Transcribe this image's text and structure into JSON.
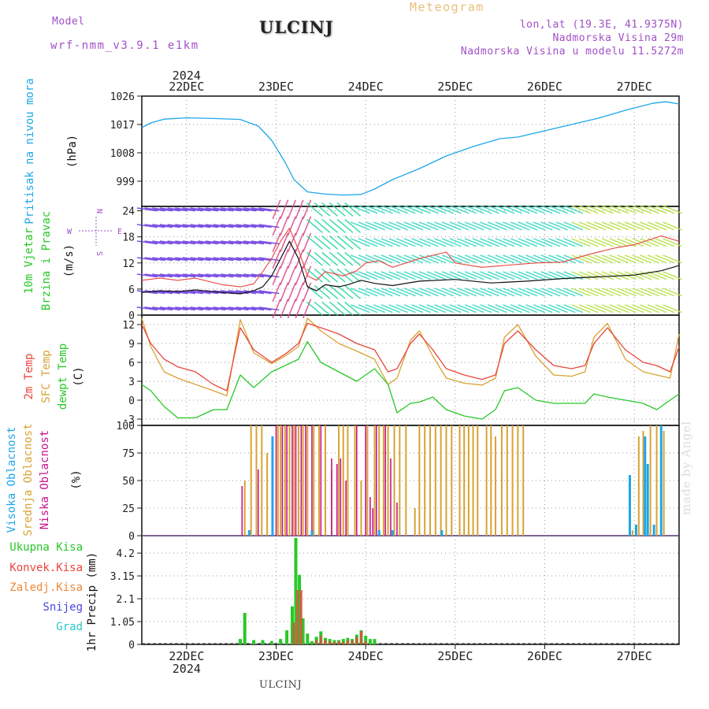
{
  "header": {
    "model_label": "Model",
    "model_name": "wrf-nmm_v3.9.1 e1km",
    "title": "ULCINJ",
    "product": "Meteogram",
    "coords": "lon,lat (19.3E, 41.9375N)",
    "elevation": "Nadmorska Visina 29m",
    "model_elevation": "Nadmorska Visina u modelu 11.5272m"
  },
  "footer": {
    "station": "ULCINJ",
    "watermark": "made by Angel"
  },
  "colors": {
    "pressure": "#1ea7e8",
    "t2m": "#e8463c",
    "sfc": "#d9a233",
    "dewpt": "#28c828",
    "high_cloud": "#1ea7e8",
    "mid_cloud": "#d9a233",
    "low_cloud": "#c8148c",
    "total_precip": "#28c828",
    "conv_precip": "#e8463c",
    "frozen_precip": "#ef8a3a",
    "snow": "#4848e0",
    "graupel": "#28c8c8",
    "model_label": "#a050c8",
    "product": "#e8c078"
  },
  "chart_data": [
    {
      "type": "line",
      "panel": "pressure",
      "title": "",
      "ylabel_lines": [
        "Pritisak na nivou mora",
        "(hPa)"
      ],
      "ylim": [
        991,
        1026
      ],
      "yticks": [
        "999",
        "1008",
        "1017",
        "1026"
      ],
      "ytick_values": [
        999,
        1008,
        1017,
        1026
      ],
      "xlim": [
        21.5,
        27.5
      ],
      "top_year": "2024",
      "top_ticks": [
        "22DEC",
        "23DEC",
        "24DEC",
        "25DEC",
        "26DEC",
        "27DEC"
      ],
      "series": [
        {
          "x": [
            21.5,
            21.6,
            21.75,
            22.0,
            22.3,
            22.6,
            22.8,
            22.95,
            23.1,
            23.2,
            23.35,
            23.55,
            23.75,
            23.95,
            24.1,
            24.3,
            24.6,
            24.9,
            25.2,
            25.5,
            25.7,
            26.0,
            26.3,
            26.6,
            26.9,
            27.2,
            27.35,
            27.5
          ],
          "y": [
            1016,
            1017.5,
            1018.7,
            1019.1,
            1018.9,
            1018.6,
            1016.5,
            1012,
            1005,
            999.5,
            995.6,
            994.9,
            994.6,
            994.8,
            996.5,
            999.5,
            1003,
            1007,
            1010,
            1012.5,
            1013,
            1015,
            1017,
            1019,
            1021.5,
            1023.7,
            1024.2,
            1023.5
          ]
        }
      ]
    },
    {
      "type": "line",
      "panel": "wind",
      "title": "",
      "ylabel_lines": [
        "10m Vjetar",
        "Brzina i Pravac",
        "(m/s)"
      ],
      "compass": [
        "W",
        "E",
        "N",
        "S"
      ],
      "ylim": [
        0,
        25
      ],
      "yticks": [
        "0",
        "6",
        "12",
        "18",
        "24"
      ],
      "ytick_values": [
        0,
        6,
        12,
        18,
        24
      ],
      "xlim": [
        21.5,
        27.5
      ],
      "series": [
        {
          "name": "speed",
          "x": [
            21.5,
            21.7,
            21.9,
            22.1,
            22.4,
            22.6,
            22.75,
            22.85,
            22.95,
            23.05,
            23.15,
            23.25,
            23.35,
            23.45,
            23.55,
            23.7,
            23.8,
            23.95,
            24.1,
            24.3,
            24.6,
            25.0,
            25.4,
            25.8,
            26.2,
            26.6,
            27.0,
            27.3,
            27.5
          ],
          "y": [
            5.2,
            5.6,
            5.4,
            5.8,
            5.2,
            4.9,
            5.6,
            6.5,
            9.0,
            13.0,
            17.0,
            13.0,
            6.5,
            5.6,
            7.0,
            6.5,
            7.0,
            8.0,
            7.3,
            6.8,
            7.8,
            8.2,
            7.4,
            7.8,
            8.4,
            8.8,
            9.2,
            10.2,
            11.4
          ]
        },
        {
          "name": "gust",
          "x": [
            21.5,
            21.7,
            21.9,
            22.1,
            22.4,
            22.6,
            22.75,
            22.85,
            22.95,
            23.05,
            23.15,
            23.25,
            23.35,
            23.45,
            23.55,
            23.75,
            23.9,
            24.0,
            24.15,
            24.3,
            24.6,
            24.9,
            25.0,
            25.3,
            25.6,
            25.9,
            26.2,
            26.5,
            26.8,
            27.0,
            27.3,
            27.5
          ],
          "y": [
            8.0,
            8.5,
            8.0,
            8.5,
            7.0,
            6.5,
            7.2,
            10.0,
            13.0,
            17.0,
            20.0,
            15.0,
            9.0,
            8.0,
            10.0,
            9.0,
            10.2,
            12.0,
            12.5,
            11.0,
            13.0,
            14.5,
            12.0,
            11.0,
            11.5,
            12.0,
            12.2,
            14.0,
            15.5,
            16.2,
            18.2,
            17.0
          ]
        }
      ]
    },
    {
      "type": "line",
      "panel": "temperature",
      "title": "",
      "ylabel_lines": [
        "2m Temp",
        "SFC Temp",
        "dewpt Temp",
        "(C)"
      ],
      "ylim": [
        -4,
        13.5
      ],
      "yticks": [
        "-3",
        "0",
        "3",
        "6",
        "9",
        "12"
      ],
      "ytick_values": [
        -3,
        0,
        3,
        6,
        9,
        12
      ],
      "xlim": [
        21.5,
        27.5
      ],
      "series": [
        {
          "name": "2m Temp",
          "x": [
            21.5,
            21.6,
            21.75,
            21.9,
            22.1,
            22.3,
            22.45,
            22.6,
            22.75,
            22.95,
            23.1,
            23.25,
            23.35,
            23.5,
            23.7,
            23.9,
            24.1,
            24.25,
            24.35,
            24.5,
            24.6,
            24.75,
            24.9,
            25.1,
            25.3,
            25.45,
            25.55,
            25.7,
            25.9,
            26.1,
            26.3,
            26.45,
            26.55,
            26.7,
            26.9,
            27.1,
            27.25,
            27.4,
            27.5
          ],
          "y": [
            12,
            9,
            6.5,
            5.3,
            4.5,
            2.5,
            1.5,
            11.5,
            8,
            6,
            7.3,
            9,
            12.2,
            11.5,
            10.5,
            9,
            8,
            4.5,
            5,
            9,
            10.5,
            8,
            5,
            4,
            3.3,
            4,
            9,
            11,
            8,
            5.5,
            5,
            5.5,
            9,
            11.5,
            8,
            6,
            5.5,
            4.5,
            8.5
          ]
        },
        {
          "name": "SFC Temp",
          "x": [
            21.5,
            21.6,
            21.75,
            21.9,
            22.1,
            22.3,
            22.45,
            22.6,
            22.75,
            22.95,
            23.1,
            23.25,
            23.35,
            23.5,
            23.7,
            23.9,
            24.1,
            24.25,
            24.35,
            24.5,
            24.6,
            24.75,
            24.9,
            25.1,
            25.3,
            25.45,
            25.55,
            25.7,
            25.9,
            26.1,
            26.3,
            26.45,
            26.55,
            26.7,
            26.9,
            27.1,
            27.25,
            27.4,
            27.5
          ],
          "y": [
            13,
            8.5,
            4.5,
            3.5,
            2.5,
            1.5,
            0.7,
            12.8,
            7.5,
            5.8,
            7,
            8.5,
            13,
            11,
            9,
            7.8,
            6.5,
            2.5,
            3.5,
            9.5,
            11,
            7,
            3.5,
            2.7,
            2.4,
            3.5,
            10,
            12,
            7,
            4,
            3.8,
            4.5,
            10,
            12.2,
            6.5,
            4.5,
            4,
            3.5,
            10.5
          ]
        },
        {
          "name": "dewpt Temp",
          "x": [
            21.5,
            21.6,
            21.75,
            21.9,
            22.1,
            22.3,
            22.45,
            22.6,
            22.75,
            22.95,
            23.1,
            23.25,
            23.35,
            23.5,
            23.7,
            23.9,
            24.1,
            24.25,
            24.35,
            24.5,
            24.6,
            24.75,
            24.9,
            25.1,
            25.3,
            25.45,
            25.55,
            25.7,
            25.9,
            26.1,
            26.3,
            26.45,
            26.55,
            26.7,
            26.9,
            27.1,
            27.25,
            27.4,
            27.5
          ],
          "y": [
            2.5,
            1.5,
            -1,
            -2.8,
            -2.8,
            -1.5,
            -1.5,
            4,
            2,
            4.5,
            5.5,
            6.5,
            9.3,
            6,
            4.5,
            3,
            5,
            2.5,
            -2,
            -0.5,
            -0.3,
            0.5,
            -1.5,
            -2.5,
            -3,
            -1.5,
            1.5,
            2,
            0,
            -0.5,
            -0.5,
            -0.5,
            1,
            0.5,
            0,
            -0.5,
            -1.5,
            0,
            1
          ]
        }
      ]
    },
    {
      "type": "bar",
      "panel": "clouds",
      "title": "",
      "ylabel_lines": [
        "Visoka Oblacnost",
        "Srednja Oblacnost",
        "Niska Oblacnost",
        "(%)"
      ],
      "ylim": [
        0,
        100
      ],
      "yticks": [
        "0",
        "25",
        "50",
        "75",
        "100"
      ],
      "ytick_values": [
        0,
        25,
        50,
        75,
        100
      ],
      "xlim": [
        21.5,
        27.5
      ],
      "series": [
        {
          "name": "Srednja Oblacnost",
          "x": [
            22.65,
            22.72,
            22.78,
            22.84,
            22.9,
            23.02,
            23.05,
            23.1,
            23.15,
            23.2,
            23.25,
            23.3,
            23.35,
            23.42,
            23.48,
            23.55,
            23.62,
            23.7,
            23.75,
            23.8,
            23.88,
            23.95,
            24.02,
            24.1,
            24.15,
            24.2,
            24.25,
            24.32,
            24.38,
            24.45,
            24.55,
            24.6,
            24.66,
            24.72,
            24.78,
            24.84,
            24.9,
            24.96,
            25.05,
            25.1,
            25.15,
            25.2,
            25.25,
            25.35,
            25.4,
            25.45,
            25.52,
            25.58,
            25.64,
            25.7,
            25.76,
            26.98,
            27.05,
            27.1,
            27.18,
            27.25,
            27.33
          ],
          "y": [
            50,
            100,
            100,
            100,
            75,
            100,
            100,
            100,
            100,
            100,
            100,
            100,
            100,
            100,
            100,
            100,
            60,
            100,
            100,
            100,
            100,
            50,
            100,
            100,
            100,
            100,
            100,
            100,
            100,
            100,
            25,
            100,
            100,
            100,
            100,
            100,
            100,
            100,
            100,
            100,
            100,
            100,
            100,
            100,
            100,
            90,
            100,
            100,
            100,
            100,
            100,
            5,
            90,
            95,
            100,
            100,
            95
          ]
        },
        {
          "name": "Niska Oblacnost",
          "x": [
            22.62,
            22.8,
            23.0,
            23.07,
            23.12,
            23.18,
            23.22,
            23.28,
            23.33,
            23.4,
            23.5,
            23.62,
            23.68,
            23.72,
            23.78,
            23.9,
            24.0,
            24.05,
            24.08,
            24.12,
            24.22,
            24.28,
            24.35
          ],
          "y": [
            45,
            60,
            100,
            100,
            100,
            100,
            100,
            100,
            100,
            100,
            100,
            70,
            65,
            70,
            50,
            100,
            100,
            35,
            25,
            100,
            100,
            70,
            30
          ]
        },
        {
          "name": "Visoka Oblacnost",
          "x": [
            22.7,
            22.96,
            23.4,
            24.15,
            24.3,
            24.85,
            26.95,
            27.02,
            27.12,
            27.15,
            27.22,
            27.3
          ],
          "y": [
            5,
            90,
            5,
            5,
            5,
            5,
            55,
            10,
            90,
            65,
            10,
            100
          ]
        }
      ]
    },
    {
      "type": "bar",
      "panel": "precip",
      "title": "",
      "ylabel_lines": [
        "1hr Precip (mm)"
      ],
      "legend": [
        "Ukupna Kisa",
        "Konvek.Kisa",
        "Zaledj.Kisa",
        "Snijeg",
        "Grad"
      ],
      "ylim": [
        0,
        5
      ],
      "yticks": [
        "0",
        "1.05",
        "2.1",
        "3.15",
        "4.2"
      ],
      "ytick_values": [
        0,
        1.05,
        2.1,
        3.15,
        4.2
      ],
      "xlim": [
        21.5,
        27.5
      ],
      "bottom_ticks": [
        "22DEC",
        "23DEC",
        "24DEC",
        "25DEC",
        "26DEC",
        "27DEC"
      ],
      "bottom_year": "2024",
      "series": [
        {
          "name": "Ukupna Kisa",
          "x": [
            22.6,
            22.65,
            22.75,
            22.85,
            22.95,
            23.05,
            23.12,
            23.18,
            23.22,
            23.26,
            23.3,
            23.35,
            23.4,
            23.45,
            23.5,
            23.55,
            23.6,
            23.65,
            23.7,
            23.75,
            23.8,
            23.85,
            23.9,
            23.95,
            24.0,
            24.05,
            24.1
          ],
          "y": [
            0.25,
            1.45,
            0.2,
            0.2,
            0.15,
            0.25,
            0.65,
            1.75,
            4.9,
            3.2,
            1.2,
            0.5,
            0.15,
            0.35,
            0.6,
            0.3,
            0.25,
            0.2,
            0.2,
            0.25,
            0.3,
            0.25,
            0.45,
            0.65,
            0.4,
            0.25,
            0.25
          ]
        },
        {
          "name": "Konvek.Kisa",
          "x": [
            23.2,
            23.24,
            23.28,
            23.45,
            23.5,
            23.55,
            23.6,
            23.65,
            23.7,
            23.75,
            23.8,
            23.85,
            23.9,
            23.95,
            24.0
          ],
          "y": [
            1.0,
            2.5,
            2.5,
            0.2,
            0.4,
            0.2,
            0.15,
            0.1,
            0.15,
            0.1,
            0.2,
            0.2,
            0.35,
            0.6,
            0.15
          ]
        }
      ]
    }
  ]
}
